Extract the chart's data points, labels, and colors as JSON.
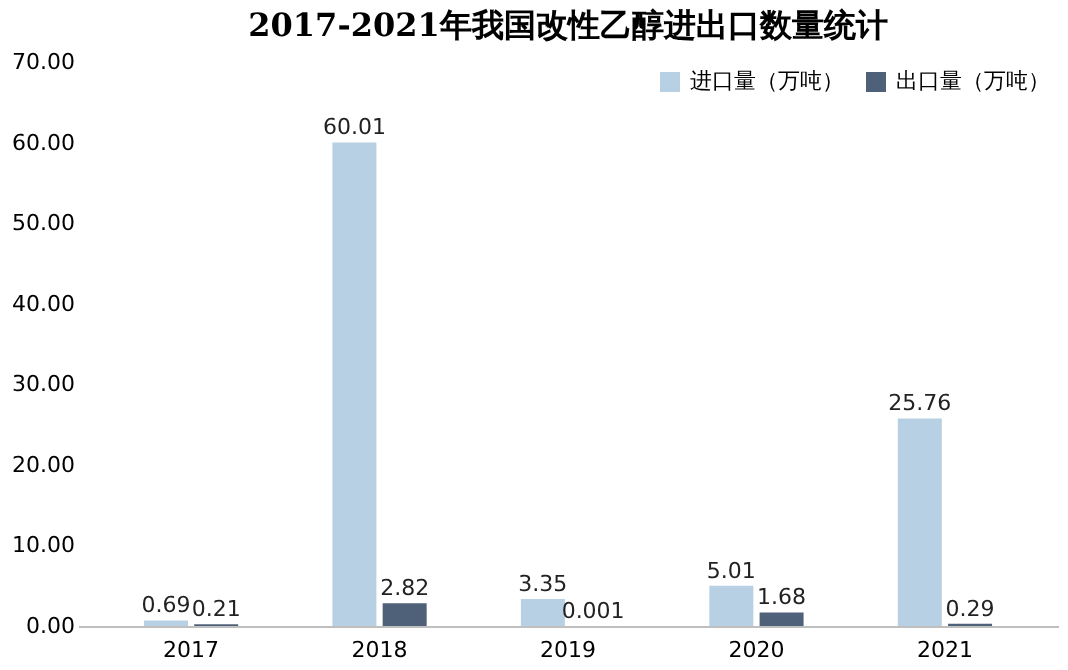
{
  "chart_data": {
    "type": "bar",
    "title": "2017-2021年我国改性乙醇进出口数量统计",
    "categories": [
      "2017",
      "2018",
      "2019",
      "2020",
      "2021"
    ],
    "series": [
      {
        "name": "进口量（万吨）",
        "color": "#b7d0e3",
        "values": [
          0.69,
          60.01,
          3.35,
          5.01,
          25.76
        ]
      },
      {
        "name": "出口量（万吨）",
        "color": "#4f6178",
        "values": [
          0.21,
          2.82,
          0.001,
          1.68,
          0.29
        ]
      }
    ],
    "ylim": [
      0,
      70
    ],
    "yticks": [
      {
        "value": 0,
        "label": "0.00"
      },
      {
        "value": 10,
        "label": "10.00"
      },
      {
        "value": 20,
        "label": "20.00"
      },
      {
        "value": 30,
        "label": "30.00"
      },
      {
        "value": 40,
        "label": "40.00"
      },
      {
        "value": 50,
        "label": "50.00"
      },
      {
        "value": 60,
        "label": "60.00"
      },
      {
        "value": 70,
        "label": "70.00"
      }
    ],
    "grid": false,
    "legend": "top right",
    "data_labels": true
  }
}
